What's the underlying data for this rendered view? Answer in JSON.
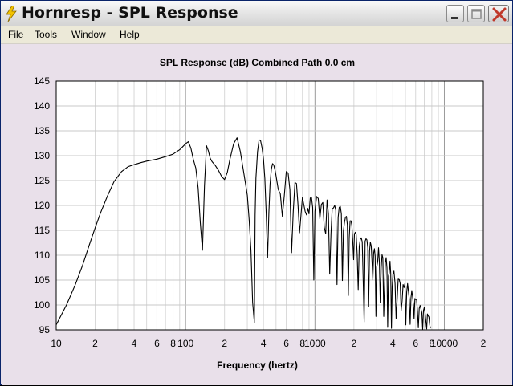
{
  "window": {
    "title": "Hornresp - SPL Response"
  },
  "menu": [
    {
      "label": "File"
    },
    {
      "label": "Tools"
    },
    {
      "label": "Window"
    },
    {
      "label": "Help"
    }
  ],
  "icons": {
    "app": "lightning-bolt-icon",
    "minimize": "minimize-icon",
    "maximize": "maximize-icon",
    "close": "close-icon"
  },
  "colors": {
    "background": "#e9e0ea",
    "plot_bg": "#ffffff",
    "trace": "#000000",
    "close_x": "#c0392b"
  },
  "chart_data": {
    "type": "line",
    "title": "SPL Response (dB)   Combined   Path 0.0 cm",
    "xlabel": "Frequency (hertz)",
    "ylabel": "",
    "x_scale": "log",
    "xlim": [
      10,
      20000
    ],
    "ylim": [
      95,
      145
    ],
    "y_ticks": [
      95,
      100,
      105,
      110,
      115,
      120,
      125,
      130,
      135,
      140,
      145
    ],
    "x_tick_labels": [
      "10",
      "2",
      "4",
      "6",
      "8",
      "100",
      "2",
      "4",
      "6",
      "8",
      "1000",
      "2",
      "4",
      "6",
      "8",
      "10000",
      "2"
    ],
    "x_tick_values": [
      10,
      20,
      40,
      60,
      80,
      100,
      200,
      400,
      600,
      800,
      1000,
      2000,
      4000,
      6000,
      8000,
      10000,
      20000
    ],
    "grid": true,
    "series": [
      {
        "x": [
          10,
          12,
          14,
          16,
          18,
          20,
          22,
          25,
          28,
          32,
          36,
          40,
          45,
          50,
          60,
          70,
          80,
          90,
          95,
          100,
          105,
          110,
          115,
          120,
          125,
          130,
          135,
          140,
          145,
          150,
          155,
          160,
          165,
          170,
          180,
          190,
          200,
          210,
          220,
          235,
          250,
          265,
          280,
          290,
          300,
          310,
          320,
          330,
          340,
          345,
          350,
          360,
          370,
          380,
          390,
          400,
          410,
          420,
          430,
          440,
          450,
          460,
          470,
          480,
          490,
          500,
          510,
          520,
          540,
          560,
          580,
          600,
          620,
          640,
          660,
          680,
          700,
          720,
          740,
          760,
          780,
          800,
          820,
          840,
          860,
          880,
          900,
          920,
          940,
          960,
          980,
          1000,
          1030,
          1060,
          1090,
          1120,
          1150,
          1180,
          1210,
          1240,
          1270,
          1300,
          1330,
          1360,
          1390,
          1420,
          1450,
          1480,
          1510,
          1540,
          1570,
          1600,
          1630,
          1660,
          1690,
          1720,
          1750,
          1780,
          1810,
          1840,
          1870,
          1900,
          1930,
          1960,
          1990,
          2020,
          2050,
          2080,
          2120,
          2160,
          2200,
          2240,
          2280,
          2320,
          2360,
          2400,
          2440,
          2480,
          2520,
          2560,
          2600,
          2640,
          2680,
          2720,
          2760,
          2800,
          2840,
          2880,
          2920,
          2960,
          3000,
          3050,
          3100,
          3150,
          3200,
          3250,
          3300,
          3350,
          3400,
          3450,
          3500,
          3550,
          3600,
          3650,
          3700,
          3750,
          3800,
          3850,
          3900,
          3950,
          4000,
          4080,
          4160,
          4240,
          4320,
          4400,
          4480,
          4560,
          4640,
          4720,
          4800,
          4880,
          4960,
          5040,
          5120,
          5200,
          5280,
          5360,
          5440,
          5520,
          5600,
          5680,
          5760,
          5840,
          5920,
          6000,
          6100,
          6200,
          6300,
          6400,
          6500,
          6600,
          6700,
          6800,
          6900,
          7000,
          7100,
          7200,
          7300,
          7400,
          7500,
          7600,
          7700,
          7800
        ],
        "y": [
          96,
          100,
          104,
          108,
          112,
          115.5,
          118.5,
          122,
          124.8,
          126.8,
          127.8,
          128.2,
          128.6,
          128.9,
          129.3,
          129.8,
          130.3,
          131.2,
          131.8,
          132.4,
          132.8,
          131.5,
          129.2,
          127.5,
          123.5,
          116.5,
          111,
          124,
          132,
          131,
          129.5,
          128.8,
          128.4,
          128,
          127,
          125.8,
          125.2,
          126.6,
          129.2,
          132.4,
          133.6,
          130.8,
          127,
          124.5,
          122,
          117,
          111,
          100.5,
          96.5,
          118,
          125.5,
          130.8,
          133.2,
          133,
          131.6,
          129.3,
          125.4,
          118.3,
          109.5,
          118.5,
          124.3,
          127.3,
          128.4,
          128.1,
          127.2,
          126,
          124.6,
          123.2,
          122.3,
          117.8,
          122.1,
          126.8,
          126.5,
          123.2,
          110.5,
          118.8,
          124.6,
          124.4,
          120.1,
          114.5,
          118,
          121.6,
          120.2,
          118.8,
          118.1,
          119.4,
          118.3,
          121.5,
          121.6,
          119.6,
          105,
          118.8,
          121.8,
          121.4,
          117.3,
          120.2,
          120.6,
          115.6,
          114.3,
          121.1,
          118.3,
          106.2,
          114.4,
          119.3,
          119.5,
          120,
          119,
          104.1,
          117.6,
          119.6,
          119.8,
          118.3,
          104.9,
          114.9,
          116.6,
          117.6,
          117.8,
          116.1,
          101.9,
          113.5,
          116.9,
          116.9,
          116,
          112.9,
          109.1,
          114.3,
          114.6,
          114.3,
          110.2,
          103.1,
          111.8,
          113.2,
          113.5,
          112.7,
          105,
          96.6,
          112.8,
          113.3,
          113.1,
          111.5,
          99.6,
          110.8,
          112.6,
          111.9,
          108.7,
          105,
          110.4,
          111.3,
          109.8,
          97.7,
          107.6,
          108.6,
          111.5,
          108.5,
          100.4,
          107.4,
          110.1,
          109.5,
          97.7,
          103.5,
          108.5,
          109.5,
          107.4,
          95.5,
          105.8,
          106.4,
          108.8,
          106.3,
          95.3,
          103.6,
          106.1,
          106.8,
          104.3,
          97.3,
          101.1,
          105.2,
          105.1,
          104.3,
          98.9,
          100.8,
          104.1,
          103.5,
          104.3,
          96,
          102.6,
          104.3,
          102.7,
          101.2,
          96.1,
          101.4,
          102.9,
          101.7,
          100.1,
          97.2,
          101.3,
          101.1,
          101.2,
          98.8,
          95.4,
          99.3,
          99.9,
          99.2,
          98.4,
          95.1,
          98.9,
          99.5,
          98.4,
          96.7,
          95.2,
          98.2,
          97.8,
          97.6,
          96.1,
          95.3
        ]
      }
    ]
  }
}
